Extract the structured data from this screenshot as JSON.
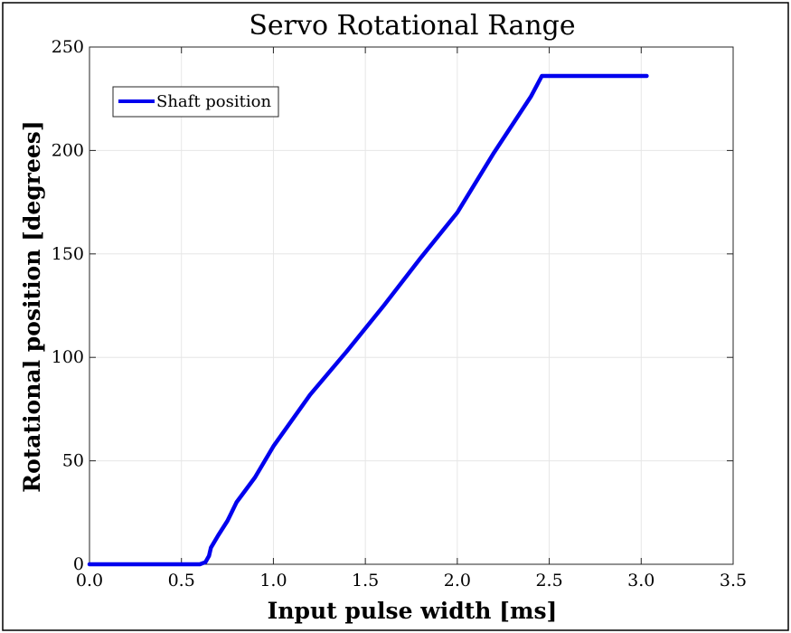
{
  "chart_data": {
    "type": "line",
    "title": "Servo Rotational Range",
    "xlabel": "Input pulse width [ms]",
    "ylabel": "Rotational position [degrees]",
    "xlim": [
      0,
      3.5
    ],
    "ylim": [
      0,
      250
    ],
    "x_ticks": [
      0,
      0.5,
      1,
      1.5,
      2,
      2.5,
      3,
      3.5
    ],
    "x_tick_labels": [
      "0.0",
      "0.5",
      "1.0",
      "1.5",
      "2.0",
      "2.5",
      "3.0",
      "3.5"
    ],
    "y_ticks": [
      0,
      50,
      100,
      150,
      200,
      250
    ],
    "y_tick_labels": [
      "0",
      "50",
      "100",
      "150",
      "200",
      "250"
    ],
    "grid": true,
    "legend_position": "top-left",
    "series": [
      {
        "name": "Shaft position",
        "color": "#0000ee",
        "points": [
          [
            0.0,
            0
          ],
          [
            0.6,
            0
          ],
          [
            0.63,
            1
          ],
          [
            0.65,
            4
          ],
          [
            0.66,
            8
          ],
          [
            0.7,
            14
          ],
          [
            0.75,
            21
          ],
          [
            0.8,
            30
          ],
          [
            0.9,
            42
          ],
          [
            1.0,
            57
          ],
          [
            1.2,
            82
          ],
          [
            1.4,
            103
          ],
          [
            1.6,
            125
          ],
          [
            1.8,
            148
          ],
          [
            2.0,
            170
          ],
          [
            2.2,
            199
          ],
          [
            2.4,
            226
          ],
          [
            2.46,
            236
          ],
          [
            3.03,
            236
          ]
        ]
      }
    ]
  },
  "colors": {
    "line": "#0000ee",
    "grid": "#e6e6e6",
    "axes": "#262626"
  }
}
